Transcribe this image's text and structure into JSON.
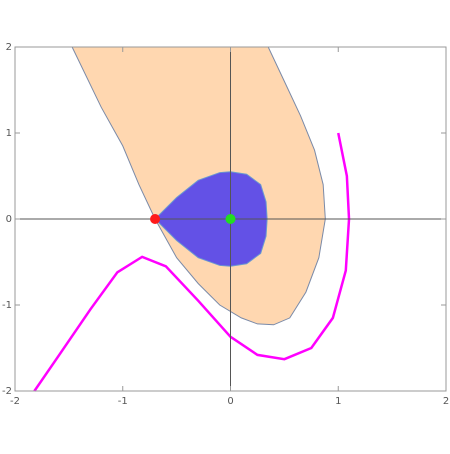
{
  "chart_data": {
    "type": "line",
    "xlim": [
      -2,
      2
    ],
    "ylim": [
      -2,
      2
    ],
    "xticks": [
      -2,
      -1,
      0,
      1,
      2
    ],
    "yticks": [
      -2,
      -1,
      0,
      1,
      2
    ],
    "series": [
      {
        "type": "area",
        "color": "#ffd7b0",
        "stroke": "#7a8aa8",
        "x": [
          -1.47,
          -1.2,
          -1.0,
          -0.85,
          -0.7,
          -0.5,
          -0.3,
          -0.1,
          0.1,
          0.25,
          0.4,
          0.55,
          0.7,
          0.82,
          0.88,
          0.86,
          0.78,
          0.65,
          0.5,
          0.35
        ],
        "y": [
          2,
          1.3,
          0.85,
          0.4,
          0,
          -0.45,
          -0.75,
          -1.0,
          -1.15,
          -1.22,
          -1.23,
          -1.15,
          -0.85,
          -0.45,
          0,
          0.4,
          0.8,
          1.2,
          1.6,
          2
        ]
      },
      {
        "type": "area",
        "color": "#6351e6",
        "stroke": "#6a9ad0",
        "x": [
          -0.7,
          -0.5,
          -0.3,
          -0.1,
          0,
          0.15,
          0.28,
          0.33,
          0.34,
          0.33,
          0.28,
          0.15,
          0,
          -0.1,
          -0.3,
          -0.5
        ],
        "y": [
          0,
          0.25,
          0.45,
          0.54,
          0.55,
          0.52,
          0.4,
          0.2,
          0,
          -0.2,
          -0.4,
          -0.52,
          -0.55,
          -0.54,
          -0.45,
          -0.25
        ]
      },
      {
        "type": "line",
        "color": "#ff00ff",
        "x": [
          -1.82,
          -1.6,
          -1.3,
          -1.05,
          -0.82,
          -0.6,
          -0.3,
          0,
          0.25,
          0.5,
          0.75,
          0.95,
          1.07,
          1.1,
          1.08,
          1.0
        ],
        "y": [
          -2,
          -1.6,
          -1.05,
          -0.62,
          -0.44,
          -0.55,
          -0.95,
          -1.37,
          -1.58,
          -1.63,
          -1.5,
          -1.15,
          -0.6,
          0,
          0.5,
          1.0
        ]
      },
      {
        "type": "scatter",
        "color": "#ff1a1a",
        "x": [
          -0.7
        ],
        "y": [
          0
        ]
      },
      {
        "type": "scatter",
        "color": "#22dd22",
        "x": [
          0
        ],
        "y": [
          0
        ]
      }
    ]
  }
}
